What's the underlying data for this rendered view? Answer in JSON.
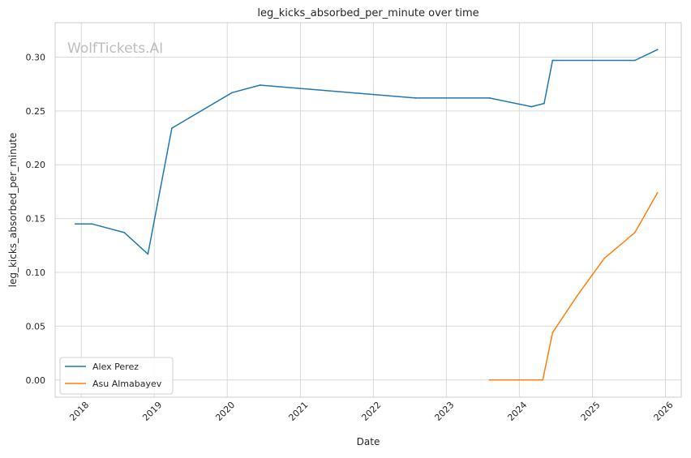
{
  "chart_data": {
    "type": "line",
    "title": "leg_kicks_absorbed_per_minute over time",
    "xlabel": "Date",
    "ylabel": "leg_kicks_absorbed_per_minute",
    "watermark": "WolfTickets.AI",
    "x_ticks": [
      "2018",
      "2019",
      "2020",
      "2021",
      "2022",
      "2023",
      "2024",
      "2025",
      "2026"
    ],
    "y_ticks": [
      "0.00",
      "0.05",
      "0.10",
      "0.15",
      "0.20",
      "0.25",
      "0.30"
    ],
    "xlim": [
      "2017-08-23",
      "2026-03-21"
    ],
    "ylim": [
      -0.016,
      0.332
    ],
    "grid": true,
    "legend_position": "lower-left",
    "series": [
      {
        "name": "Alex Perez",
        "color": "#1f77b4",
        "points": [
          {
            "date": "2017-12-02",
            "value": 0.145
          },
          {
            "date": "2018-02-24",
            "value": 0.145
          },
          {
            "date": "2018-08-04",
            "value": 0.137
          },
          {
            "date": "2018-11-30",
            "value": 0.117
          },
          {
            "date": "2019-03-30",
            "value": 0.234
          },
          {
            "date": "2020-01-25",
            "value": 0.267
          },
          {
            "date": "2020-06-13",
            "value": 0.274
          },
          {
            "date": "2022-07-30",
            "value": 0.262
          },
          {
            "date": "2023-08-05",
            "value": 0.262
          },
          {
            "date": "2024-03-02",
            "value": 0.254
          },
          {
            "date": "2024-05-04",
            "value": 0.257
          },
          {
            "date": "2024-06-15",
            "value": 0.297
          },
          {
            "date": "2025-08-01",
            "value": 0.297
          },
          {
            "date": "2025-11-22",
            "value": 0.307
          }
        ]
      },
      {
        "name": "Asu Almabayev",
        "color": "#ff7f0e",
        "points": [
          {
            "date": "2023-08-05",
            "value": 0.0
          },
          {
            "date": "2024-04-27",
            "value": 0.0
          },
          {
            "date": "2024-06-15",
            "value": 0.044
          },
          {
            "date": "2024-10-19",
            "value": 0.079
          },
          {
            "date": "2025-03-01",
            "value": 0.113
          },
          {
            "date": "2025-08-01",
            "value": 0.137
          },
          {
            "date": "2025-11-22",
            "value": 0.174
          }
        ]
      }
    ]
  }
}
